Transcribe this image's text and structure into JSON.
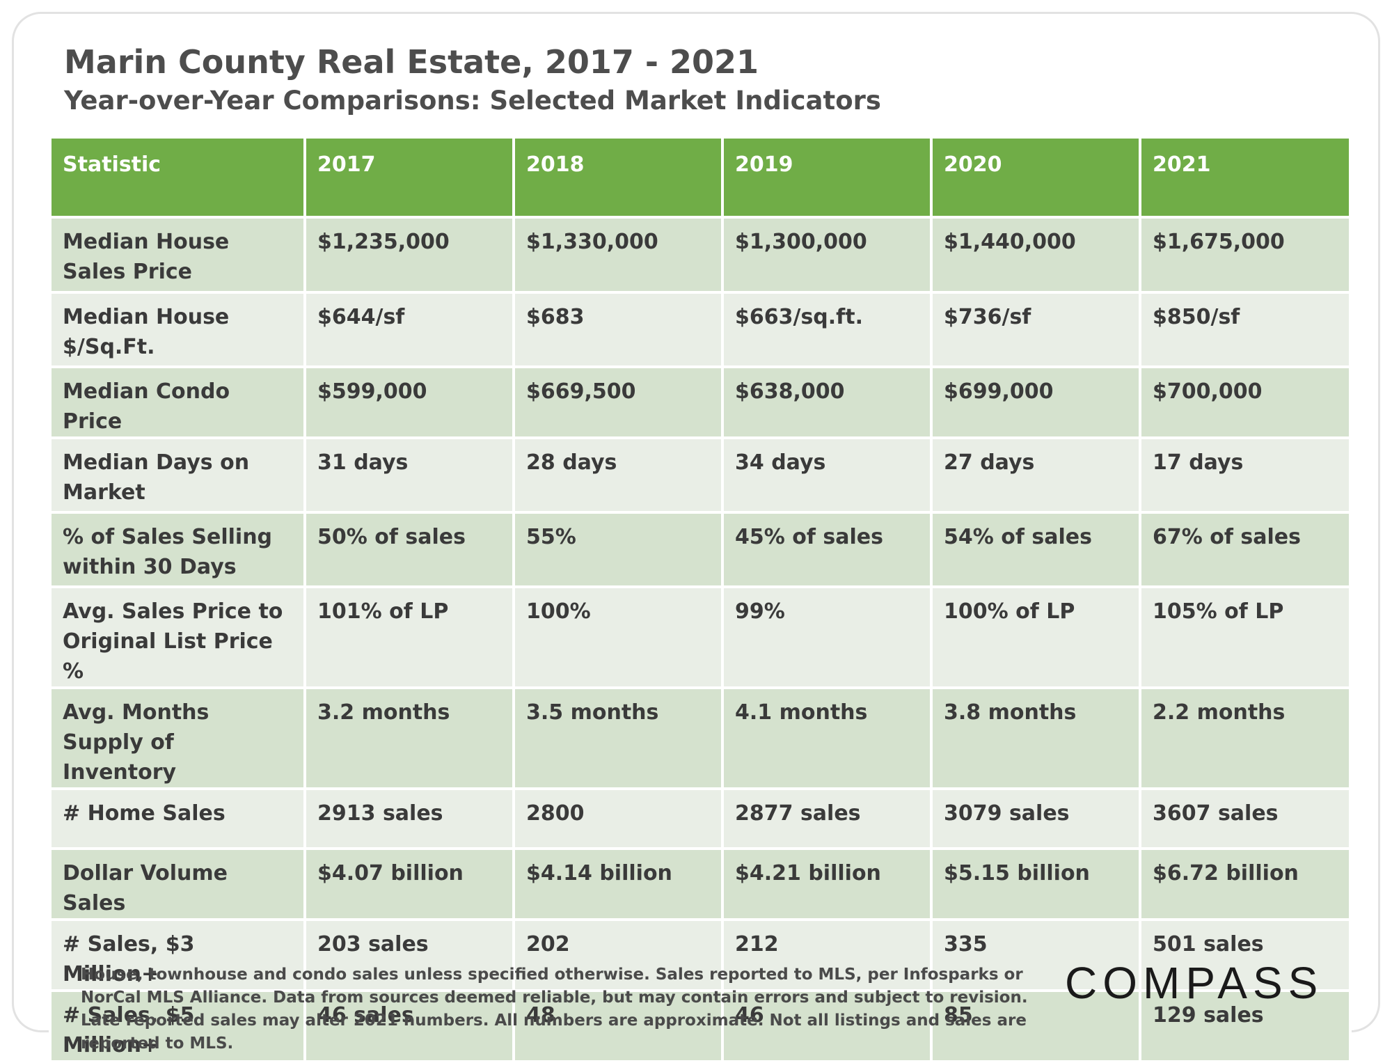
{
  "header": {
    "title": "Marin County Real Estate, 2017 - 2021",
    "subtitle": "Year-over-Year Comparisons: Selected Market Indicators"
  },
  "table": {
    "columns": [
      "Statistic",
      "2017",
      "2018",
      "2019",
      "2020",
      "2021"
    ],
    "rows": [
      [
        "Median House Sales Price",
        "$1,235,000",
        "$1,330,000",
        "$1,300,000",
        "$1,440,000",
        "$1,675,000"
      ],
      [
        "Median House $/Sq.Ft.",
        "$644/sf",
        "$683",
        "$663/sq.ft.",
        "$736/sf",
        "$850/sf"
      ],
      [
        "Median Condo Price",
        "$599,000",
        "$669,500",
        "$638,000",
        "$699,000",
        "$700,000"
      ],
      [
        "Median Days on Market",
        "31 days",
        "28 days",
        "34 days",
        "27 days",
        "17 days"
      ],
      [
        "% of Sales Selling within 30 Days",
        "50% of sales",
        "55%",
        "45% of sales",
        "54% of sales",
        "67% of sales"
      ],
      [
        "Avg. Sales Price to Original List Price %",
        "101% of LP",
        "100%",
        "99%",
        "100% of LP",
        "105% of LP"
      ],
      [
        "Avg. Months Supply of Inventory",
        "3.2 months",
        "3.5 months",
        "4.1 months",
        "3.8 months",
        "2.2 months"
      ],
      [
        "# Home Sales",
        "2913 sales",
        "2800",
        "2877 sales",
        "3079 sales",
        "3607 sales"
      ],
      [
        "Dollar Volume Sales",
        "$4.07 billion",
        "$4.14 billion",
        "$4.21 billion",
        "$5.15 billion",
        "$6.72 billion"
      ],
      [
        "# Sales, $3 Million+",
        "203 sales",
        "202",
        "212",
        "335",
        "501 sales"
      ],
      [
        "# Sales, $5 Million+",
        "46 sales",
        "48",
        "46",
        "85",
        "129 sales"
      ]
    ]
  },
  "footnote": "House, townhouse and condo sales unless specified otherwise. Sales reported to MLS, per Infosparks or NorCal MLS Alliance. Data from sources deemed reliable, but may contain errors and subject to revision. Late reported sales may alter 2021 numbers. All numbers are approximate. Not all listings and sales are reported to MLS.",
  "logo": "COMPASS",
  "colors": {
    "header_green": "#70ad47",
    "row_odd": "#d5e2ce",
    "row_even": "#e9eee6",
    "title_gray": "#4d4d4d"
  }
}
